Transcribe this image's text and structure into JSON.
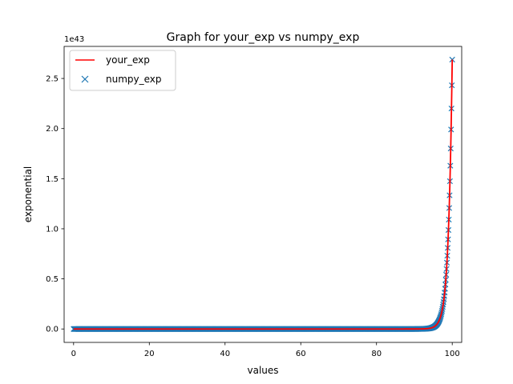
{
  "chart_data": {
    "type": "line",
    "title": "Graph for your_exp vs numpy_exp",
    "xlabel": "values",
    "ylabel": "exponential",
    "y_offset_label": "1e43",
    "xlim": [
      -2.5,
      102.5
    ],
    "ylim": [
      -0.134,
      2.82
    ],
    "x_ticks": [
      0,
      20,
      40,
      60,
      80,
      100
    ],
    "x_tick_labels": [
      "0",
      "20",
      "40",
      "60",
      "80",
      "100"
    ],
    "y_ticks": [
      0,
      0.5,
      1.0,
      1.5,
      2.0,
      2.5
    ],
    "y_tick_labels": [
      "0.0",
      "0.5",
      "1.0",
      "1.5",
      "2.0",
      "2.5"
    ],
    "y_scale": "1e43",
    "x_range": [
      0,
      100
    ],
    "num_points": 1000,
    "function": "exp(x)",
    "grid": false,
    "legend_position": "upper left",
    "series": [
      {
        "name": "your_exp",
        "style": "line",
        "color": "#ff0000"
      },
      {
        "name": "numpy_exp",
        "style": "x-marker",
        "color": "#1f77b4"
      }
    ]
  }
}
